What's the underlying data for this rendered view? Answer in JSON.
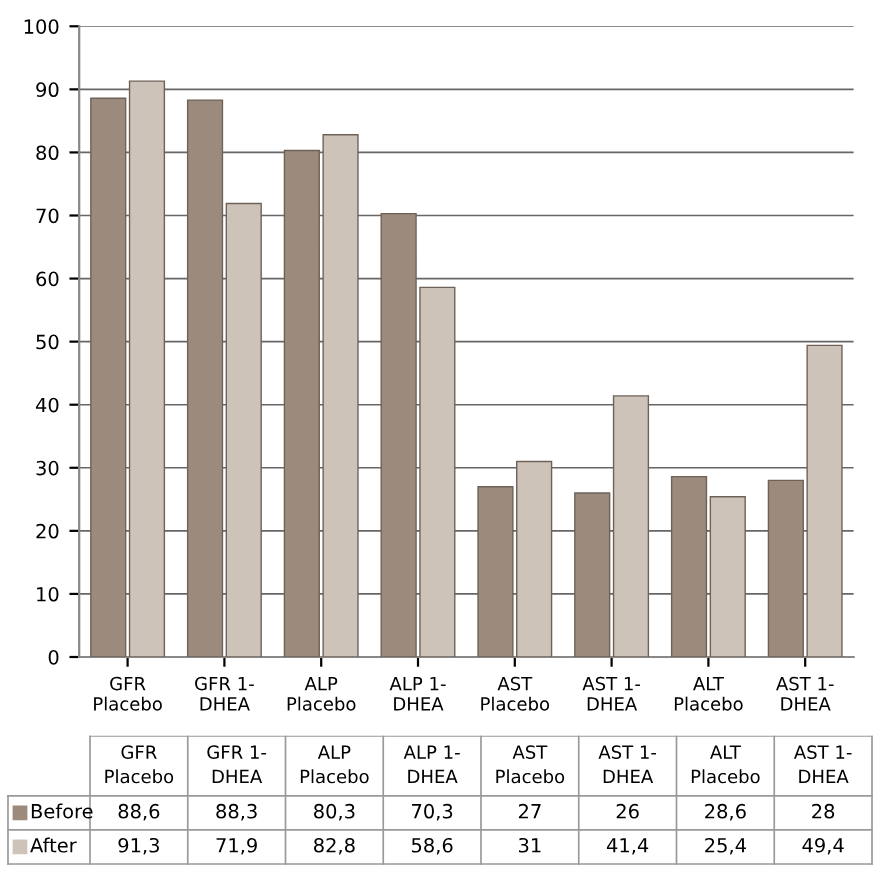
{
  "chart_data": {
    "type": "bar",
    "categories": [
      "GFR\nPlacebo",
      "GFR 1-\nDHEA",
      "ALP\nPlacebo",
      "ALP 1-\nDHEA",
      "AST\nPlacebo",
      "AST 1-\nDHEA",
      "ALT\nPlacebo",
      "AST 1-\nDHEA"
    ],
    "series": [
      {
        "name": "Before",
        "color": "#9c8b7c",
        "values": [
          88.6,
          88.3,
          80.3,
          70.3,
          27,
          26,
          28.6,
          28
        ],
        "value_labels": [
          "88,6",
          "88,3",
          "80,3",
          "70,3",
          "27",
          "26",
          "28,6",
          "28"
        ]
      },
      {
        "name": "After",
        "color": "#cdc3b8",
        "values": [
          91.3,
          71.9,
          82.8,
          58.6,
          31,
          41.4,
          25.4,
          49.4
        ],
        "value_labels": [
          "91,3",
          "71,9",
          "82,8",
          "58,6",
          "31",
          "41,4",
          "25,4",
          "49,4"
        ]
      }
    ],
    "ylim": [
      0,
      100
    ],
    "yticks": [
      0,
      10,
      20,
      30,
      40,
      50,
      60,
      70,
      80,
      90,
      100
    ],
    "grid": "y",
    "legend": "bottom left"
  }
}
